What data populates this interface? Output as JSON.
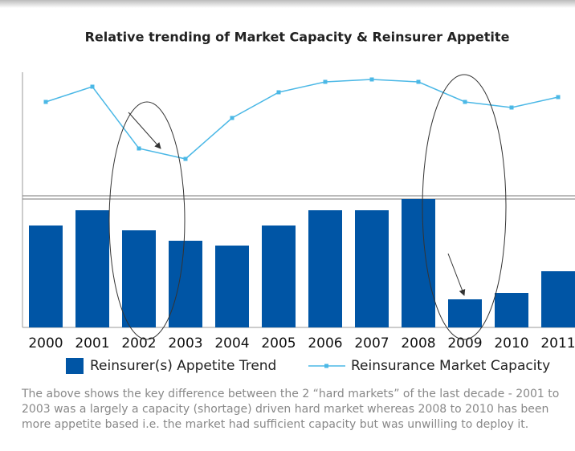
{
  "chart_data": {
    "type": "bar",
    "title": "Relative trending of Market Capacity & Reinsurer Appetite",
    "categories": [
      "2000",
      "2001",
      "2002",
      "2003",
      "2004",
      "2005",
      "2006",
      "2007",
      "2008",
      "2009",
      "2010",
      "2011"
    ],
    "series": [
      {
        "name": "Reinsurer(s) Appetite Trend",
        "color": "#0055a5",
        "type": "bar",
        "values": [
          127,
          146,
          121,
          108,
          102,
          127,
          146,
          146,
          160,
          35,
          43,
          70
        ]
      },
      {
        "name": "Reinsurance Market Capacity",
        "color": "#4bb8e6",
        "type": "line",
        "axis": "y2",
        "values": [
          118,
          137,
          60,
          47,
          98,
          130,
          143,
          146,
          143,
          118,
          111,
          124
        ]
      }
    ],
    "ylim": [
      0,
      160
    ],
    "y2lim": [
      0,
      155
    ],
    "caption": [
      "The above shows the key difference between the 2 “hard markets” of the last decade - 2001 to",
      "2003 was a largely a capacity (shortage) driven hard market whereas 2008 to 2010 has been",
      "more appetite based i.e. the market had sufficient capacity but was unwilling to deploy it."
    ]
  }
}
